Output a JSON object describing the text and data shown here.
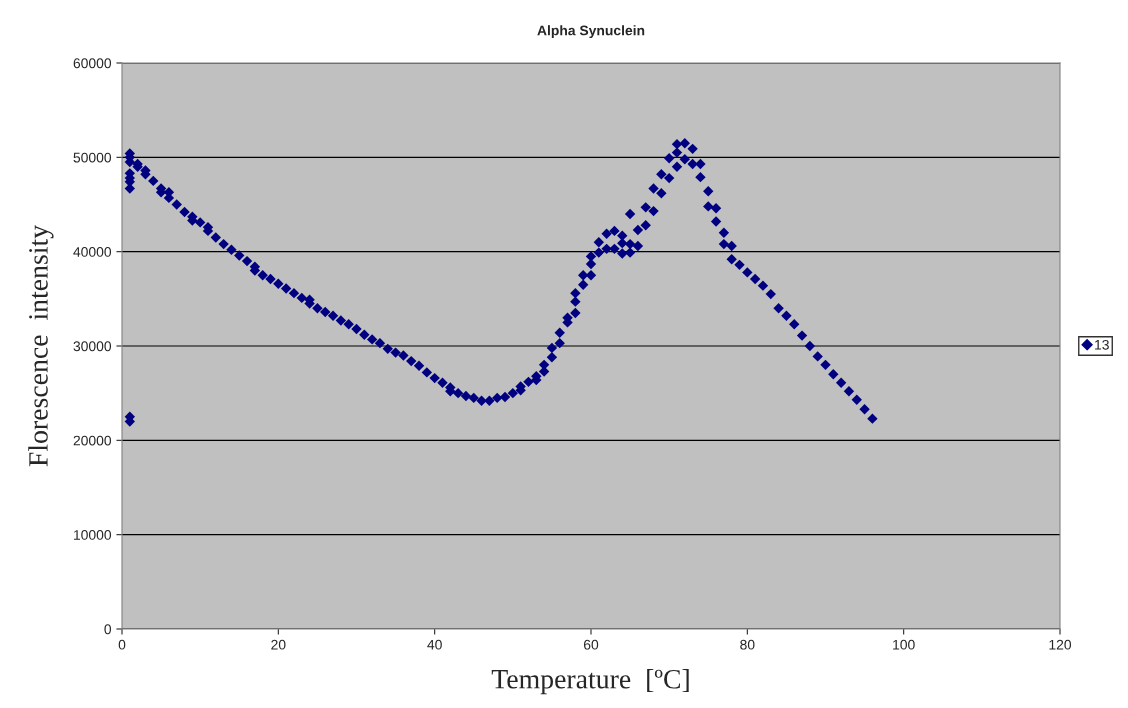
{
  "chart_data": {
    "type": "scatter",
    "title": "Alpha Synuclein",
    "xlabel": "Temperature  [ºC]",
    "ylabel": "Florescence  intensity",
    "xlim": [
      0,
      120
    ],
    "xticks": [
      0,
      20,
      40,
      60,
      80,
      100,
      120
    ],
    "ylim": [
      0,
      60000
    ],
    "yticks": [
      0,
      10000,
      20000,
      30000,
      40000,
      50000,
      60000
    ],
    "grid": "y",
    "legend": "right",
    "marker": "diamond",
    "series": [
      {
        "name": "13",
        "color": "#000080",
        "x": [
          1,
          1,
          1,
          1,
          1,
          1,
          1,
          1,
          1,
          2,
          2,
          3,
          3,
          4,
          5,
          5,
          6,
          6,
          7,
          8,
          9,
          9,
          10,
          11,
          11,
          12,
          13,
          14,
          15,
          16,
          17,
          17,
          18,
          19,
          20,
          21,
          22,
          23,
          24,
          24,
          25,
          26,
          27,
          28,
          29,
          30,
          31,
          32,
          33,
          34,
          35,
          36,
          37,
          38,
          39,
          40,
          41,
          42,
          42,
          43,
          44,
          45,
          46,
          47,
          48,
          49,
          50,
          51,
          51,
          52,
          53,
          53,
          54,
          54,
          55,
          55,
          56,
          56,
          57,
          57,
          58,
          58,
          58,
          59,
          59,
          60,
          60,
          60,
          61,
          61,
          62,
          62,
          63,
          63,
          64,
          64,
          64,
          65,
          65,
          65,
          66,
          66,
          67,
          67,
          68,
          68,
          69,
          69,
          70,
          70,
          71,
          71,
          71,
          72,
          72,
          73,
          73,
          74,
          74,
          75,
          75,
          76,
          76,
          77,
          77,
          78,
          78,
          79,
          80,
          81,
          82,
          83,
          84,
          85,
          86,
          87,
          88,
          89,
          90,
          91,
          92,
          93,
          94,
          95,
          96
        ],
        "values": [
          50400,
          50000,
          49500,
          48300,
          47800,
          47400,
          46700,
          22500,
          22000,
          49300,
          49000,
          48600,
          48200,
          47500,
          46700,
          46300,
          46300,
          45700,
          45000,
          44200,
          43700,
          43300,
          43100,
          42600,
          42200,
          41500,
          40800,
          40200,
          39600,
          39000,
          38400,
          38000,
          37500,
          37100,
          36600,
          36100,
          35600,
          35100,
          34900,
          34500,
          34000,
          33600,
          33200,
          32700,
          32300,
          31800,
          31200,
          30700,
          30300,
          29700,
          29300,
          29000,
          28400,
          27900,
          27200,
          26600,
          26100,
          25600,
          25200,
          25000,
          24700,
          24500,
          24200,
          24200,
          24500,
          24600,
          25000,
          25700,
          25300,
          26200,
          26400,
          26800,
          27300,
          28000,
          28800,
          29800,
          30300,
          31400,
          32500,
          33000,
          33500,
          34700,
          35600,
          36500,
          37500,
          37500,
          38700,
          39500,
          39900,
          41000,
          40300,
          41900,
          40300,
          42200,
          39800,
          40900,
          41700,
          39900,
          40800,
          44000,
          40600,
          42300,
          42800,
          44700,
          44300,
          46700,
          46200,
          48200,
          47800,
          49900,
          49000,
          50500,
          51400,
          49800,
          51500,
          49300,
          50900,
          47900,
          49300,
          44800,
          46400,
          43200,
          44600,
          40800,
          42000,
          39200,
          40600,
          38600,
          37800,
          37100,
          36400,
          35500,
          34000,
          33200,
          32300,
          31100,
          30000,
          28900,
          28000,
          27000,
          26100,
          25200,
          24300,
          23300,
          22300
        ]
      }
    ]
  }
}
